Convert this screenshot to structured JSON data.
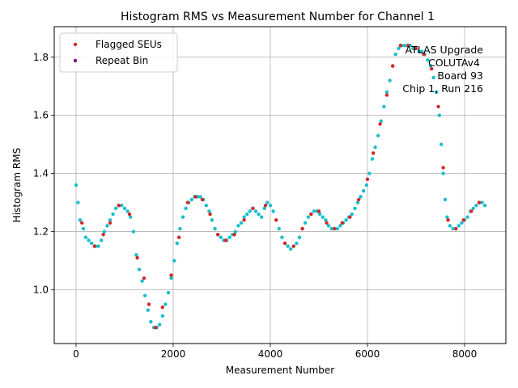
{
  "chart_data": {
    "type": "scatter",
    "title": "Histogram RMS vs Measurement Number for Channel 1",
    "xlabel": "Measurement Number",
    "ylabel": "Histogram RMS",
    "xlim": [
      -450,
      8850
    ],
    "ylim": [
      0.815,
      1.905
    ],
    "xticks": [
      0,
      2000,
      4000,
      6000,
      8000
    ],
    "yticks": [
      1.0,
      1.2,
      1.4,
      1.6,
      1.8
    ],
    "xtick_labels": [
      "0",
      "2000",
      "4000",
      "6000",
      "8000"
    ],
    "ytick_labels": [
      "1.0",
      "1.2",
      "1.4",
      "1.6",
      "1.8"
    ],
    "grid": true,
    "legend_position": "top-left",
    "legend": [
      {
        "label": "Flagged SEUs",
        "color": "#d62728"
      },
      {
        "label": "Repeat Bin",
        "color": "#800080"
      }
    ],
    "annotation": [
      "ATLAS Upgrade",
      "COLUTAv4",
      "Board 93",
      "Chip 1, Run 216"
    ],
    "series": [
      {
        "name": "Histogram RMS",
        "color": "#17becf",
        "points": [
          [
            0,
            1.36
          ],
          [
            40,
            1.3
          ],
          [
            80,
            1.24
          ],
          [
            150,
            1.21
          ],
          [
            200,
            1.18
          ],
          [
            260,
            1.17
          ],
          [
            320,
            1.16
          ],
          [
            400,
            1.15
          ],
          [
            460,
            1.15
          ],
          [
            520,
            1.17
          ],
          [
            580,
            1.2
          ],
          [
            640,
            1.22
          ],
          [
            700,
            1.24
          ],
          [
            760,
            1.26
          ],
          [
            820,
            1.28
          ],
          [
            880,
            1.29
          ],
          [
            940,
            1.29
          ],
          [
            1000,
            1.28
          ],
          [
            1060,
            1.27
          ],
          [
            1120,
            1.25
          ],
          [
            1180,
            1.2
          ],
          [
            1240,
            1.12
          ],
          [
            1300,
            1.07
          ],
          [
            1360,
            1.03
          ],
          [
            1420,
            0.98
          ],
          [
            1480,
            0.93
          ],
          [
            1540,
            0.89
          ],
          [
            1600,
            0.87
          ],
          [
            1660,
            0.87
          ],
          [
            1720,
            0.88
          ],
          [
            1780,
            0.91
          ],
          [
            1840,
            0.95
          ],
          [
            1900,
            0.99
          ],
          [
            1960,
            1.04
          ],
          [
            2020,
            1.1
          ],
          [
            2080,
            1.16
          ],
          [
            2140,
            1.21
          ],
          [
            2200,
            1.25
          ],
          [
            2260,
            1.28
          ],
          [
            2320,
            1.3
          ],
          [
            2380,
            1.31
          ],
          [
            2440,
            1.32
          ],
          [
            2500,
            1.32
          ],
          [
            2560,
            1.32
          ],
          [
            2620,
            1.31
          ],
          [
            2680,
            1.29
          ],
          [
            2740,
            1.27
          ],
          [
            2800,
            1.24
          ],
          [
            2860,
            1.21
          ],
          [
            2920,
            1.19
          ],
          [
            2980,
            1.18
          ],
          [
            3040,
            1.17
          ],
          [
            3100,
            1.17
          ],
          [
            3160,
            1.18
          ],
          [
            3220,
            1.19
          ],
          [
            3280,
            1.2
          ],
          [
            3340,
            1.22
          ],
          [
            3400,
            1.23
          ],
          [
            3460,
            1.25
          ],
          [
            3520,
            1.26
          ],
          [
            3580,
            1.27
          ],
          [
            3640,
            1.28
          ],
          [
            3700,
            1.27
          ],
          [
            3760,
            1.26
          ],
          [
            3820,
            1.25
          ],
          [
            3880,
            1.28
          ],
          [
            3940,
            1.3
          ],
          [
            4000,
            1.29
          ],
          [
            4060,
            1.27
          ],
          [
            4120,
            1.24
          ],
          [
            4180,
            1.21
          ],
          [
            4240,
            1.18
          ],
          [
            4300,
            1.16
          ],
          [
            4360,
            1.15
          ],
          [
            4420,
            1.14
          ],
          [
            4480,
            1.15
          ],
          [
            4540,
            1.16
          ],
          [
            4600,
            1.18
          ],
          [
            4660,
            1.21
          ],
          [
            4720,
            1.23
          ],
          [
            4780,
            1.25
          ],
          [
            4840,
            1.26
          ],
          [
            4900,
            1.27
          ],
          [
            4960,
            1.27
          ],
          [
            5020,
            1.26
          ],
          [
            5080,
            1.25
          ],
          [
            5140,
            1.24
          ],
          [
            5200,
            1.22
          ],
          [
            5260,
            1.21
          ],
          [
            5320,
            1.21
          ],
          [
            5380,
            1.21
          ],
          [
            5440,
            1.22
          ],
          [
            5500,
            1.23
          ],
          [
            5560,
            1.24
          ],
          [
            5620,
            1.25
          ],
          [
            5680,
            1.26
          ],
          [
            5740,
            1.28
          ],
          [
            5800,
            1.3
          ],
          [
            5860,
            1.32
          ],
          [
            5920,
            1.34
          ],
          [
            5980,
            1.36
          ],
          [
            6040,
            1.4
          ],
          [
            6100,
            1.45
          ],
          [
            6160,
            1.49
          ],
          [
            6220,
            1.53
          ],
          [
            6280,
            1.58
          ],
          [
            6340,
            1.63
          ],
          [
            6400,
            1.68
          ],
          [
            6460,
            1.72
          ],
          [
            6520,
            1.77
          ],
          [
            6580,
            1.81
          ],
          [
            6640,
            1.83
          ],
          [
            6700,
            1.84
          ],
          [
            6760,
            1.84
          ],
          [
            6820,
            1.84
          ],
          [
            6880,
            1.84
          ],
          [
            6940,
            1.83
          ],
          [
            7000,
            1.83
          ],
          [
            7060,
            1.82
          ],
          [
            7120,
            1.82
          ],
          [
            7180,
            1.81
          ],
          [
            7240,
            1.79
          ],
          [
            7300,
            1.77
          ],
          [
            7360,
            1.73
          ],
          [
            7420,
            1.68
          ],
          [
            7480,
            1.6
          ],
          [
            7520,
            1.5
          ],
          [
            7560,
            1.4
          ],
          [
            7600,
            1.31
          ],
          [
            7640,
            1.25
          ],
          [
            7700,
            1.22
          ],
          [
            7760,
            1.21
          ],
          [
            7820,
            1.21
          ],
          [
            7880,
            1.22
          ],
          [
            7940,
            1.23
          ],
          [
            8000,
            1.24
          ],
          [
            8060,
            1.25
          ],
          [
            8120,
            1.27
          ],
          [
            8180,
            1.28
          ],
          [
            8240,
            1.29
          ],
          [
            8300,
            1.3
          ],
          [
            8360,
            1.3
          ],
          [
            8420,
            1.29
          ]
        ]
      },
      {
        "name": "Flagged SEUs",
        "color": "#d62728",
        "points": [
          [
            120,
            1.23
          ],
          [
            380,
            1.15
          ],
          [
            560,
            1.19
          ],
          [
            700,
            1.23
          ],
          [
            880,
            1.29
          ],
          [
            1100,
            1.26
          ],
          [
            1260,
            1.11
          ],
          [
            1400,
            1.04
          ],
          [
            1500,
            0.95
          ],
          [
            1640,
            0.87
          ],
          [
            1780,
            0.94
          ],
          [
            1960,
            1.05
          ],
          [
            2120,
            1.18
          ],
          [
            2300,
            1.3
          ],
          [
            2460,
            1.32
          ],
          [
            2600,
            1.31
          ],
          [
            2760,
            1.26
          ],
          [
            2920,
            1.19
          ],
          [
            3080,
            1.17
          ],
          [
            3260,
            1.19
          ],
          [
            3460,
            1.24
          ],
          [
            3640,
            1.28
          ],
          [
            3900,
            1.29
          ],
          [
            4120,
            1.24
          ],
          [
            4300,
            1.16
          ],
          [
            4480,
            1.15
          ],
          [
            4660,
            1.21
          ],
          [
            4840,
            1.26
          ],
          [
            5000,
            1.27
          ],
          [
            5160,
            1.23
          ],
          [
            5320,
            1.21
          ],
          [
            5480,
            1.23
          ],
          [
            5640,
            1.25
          ],
          [
            5820,
            1.31
          ],
          [
            6000,
            1.38
          ],
          [
            6120,
            1.47
          ],
          [
            6260,
            1.57
          ],
          [
            6400,
            1.67
          ],
          [
            6520,
            1.77
          ],
          [
            6680,
            1.84
          ],
          [
            6840,
            1.84
          ],
          [
            7000,
            1.83
          ],
          [
            7160,
            1.81
          ],
          [
            7320,
            1.76
          ],
          [
            7460,
            1.63
          ],
          [
            7560,
            1.42
          ],
          [
            7660,
            1.24
          ],
          [
            7820,
            1.21
          ],
          [
            7980,
            1.24
          ],
          [
            8140,
            1.27
          ],
          [
            8300,
            1.3
          ]
        ]
      },
      {
        "name": "Repeat Bin",
        "color": "#800080",
        "points": []
      }
    ]
  }
}
